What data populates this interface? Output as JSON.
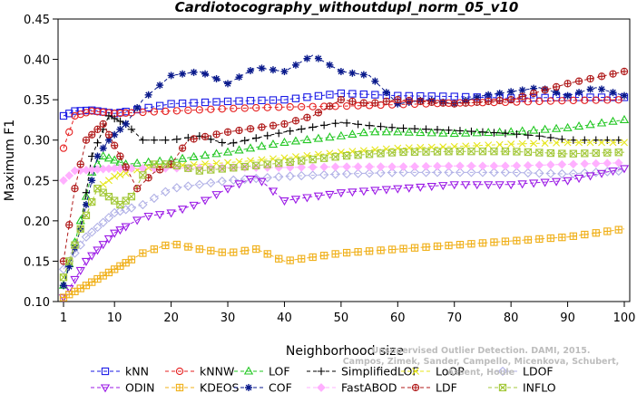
{
  "chart_data": {
    "type": "line",
    "title": "Cardiotocography_withoutdupl_norm_05_v10",
    "xlabel": "Neighborhood size",
    "ylabel": "Maximum F1",
    "xlim": [
      1,
      100
    ],
    "ylim": [
      0.1,
      0.45
    ],
    "xticks": [
      1,
      10,
      20,
      30,
      40,
      50,
      60,
      70,
      80,
      90,
      100
    ],
    "yticks": [
      "0.10",
      "0.15",
      "0.20",
      "0.25",
      "0.30",
      "0.35",
      "0.40",
      "0.45"
    ],
    "grid": false,
    "legend_position": "bottom",
    "series": [
      {
        "name": "kNN",
        "color": "#1a1ae6",
        "marker": "square",
        "knots": [
          [
            1,
            0.33
          ],
          [
            3,
            0.336
          ],
          [
            6,
            0.337
          ],
          [
            10,
            0.333
          ],
          [
            20,
            0.345
          ],
          [
            30,
            0.348
          ],
          [
            40,
            0.35
          ],
          [
            50,
            0.358
          ],
          [
            60,
            0.355
          ],
          [
            70,
            0.354
          ],
          [
            80,
            0.352
          ],
          [
            90,
            0.353
          ],
          [
            100,
            0.353
          ]
        ]
      },
      {
        "name": "kNNW",
        "color": "#e62020",
        "marker": "circle",
        "knots": [
          [
            1,
            0.29
          ],
          [
            3,
            0.33
          ],
          [
            6,
            0.336
          ],
          [
            10,
            0.333
          ],
          [
            20,
            0.336
          ],
          [
            30,
            0.339
          ],
          [
            40,
            0.341
          ],
          [
            50,
            0.342
          ],
          [
            60,
            0.344
          ],
          [
            70,
            0.346
          ],
          [
            80,
            0.347
          ],
          [
            90,
            0.349
          ],
          [
            100,
            0.35
          ]
        ]
      },
      {
        "name": "LOF",
        "color": "#22c722",
        "marker": "triangle-up",
        "knots": [
          [
            1,
            0.12
          ],
          [
            4,
            0.2
          ],
          [
            6,
            0.26
          ],
          [
            8,
            0.28
          ],
          [
            12,
            0.27
          ],
          [
            20,
            0.275
          ],
          [
            30,
            0.285
          ],
          [
            40,
            0.297
          ],
          [
            50,
            0.305
          ],
          [
            55,
            0.31
          ],
          [
            60,
            0.31
          ],
          [
            70,
            0.308
          ],
          [
            80,
            0.31
          ],
          [
            90,
            0.315
          ],
          [
            100,
            0.325
          ]
        ]
      },
      {
        "name": "SimplifiedLOF",
        "color": "#000000",
        "marker": "plus",
        "knots": [
          [
            1,
            0.12
          ],
          [
            4,
            0.19
          ],
          [
            6,
            0.28
          ],
          [
            9,
            0.33
          ],
          [
            12,
            0.32
          ],
          [
            15,
            0.3
          ],
          [
            20,
            0.3
          ],
          [
            25,
            0.305
          ],
          [
            30,
            0.295
          ],
          [
            40,
            0.31
          ],
          [
            50,
            0.322
          ],
          [
            55,
            0.318
          ],
          [
            60,
            0.315
          ],
          [
            70,
            0.312
          ],
          [
            80,
            0.308
          ],
          [
            85,
            0.305
          ],
          [
            90,
            0.3
          ],
          [
            100,
            0.3
          ]
        ]
      },
      {
        "name": "LoOP",
        "color": "#e6e61a",
        "marker": "cross",
        "knots": [
          [
            1,
            0.13
          ],
          [
            4,
            0.19
          ],
          [
            7,
            0.24
          ],
          [
            10,
            0.255
          ],
          [
            15,
            0.265
          ],
          [
            20,
            0.268
          ],
          [
            30,
            0.272
          ],
          [
            40,
            0.278
          ],
          [
            50,
            0.285
          ],
          [
            60,
            0.29
          ],
          [
            70,
            0.292
          ],
          [
            80,
            0.295
          ],
          [
            90,
            0.297
          ],
          [
            100,
            0.297
          ]
        ]
      },
      {
        "name": "LDOF",
        "color": "#b0b0e6",
        "marker": "diamond",
        "knots": [
          [
            1,
            0.14
          ],
          [
            5,
            0.18
          ],
          [
            10,
            0.21
          ],
          [
            15,
            0.22
          ],
          [
            20,
            0.24
          ],
          [
            25,
            0.245
          ],
          [
            30,
            0.25
          ],
          [
            40,
            0.255
          ],
          [
            50,
            0.258
          ],
          [
            60,
            0.26
          ],
          [
            70,
            0.26
          ],
          [
            80,
            0.26
          ],
          [
            90,
            0.258
          ],
          [
            100,
            0.262
          ]
        ]
      },
      {
        "name": "ODIN",
        "color": "#9b1ae6",
        "marker": "triangle-down",
        "knots": [
          [
            1,
            0.105
          ],
          [
            5,
            0.15
          ],
          [
            10,
            0.185
          ],
          [
            15,
            0.205
          ],
          [
            20,
            0.21
          ],
          [
            25,
            0.222
          ],
          [
            30,
            0.24
          ],
          [
            35,
            0.255
          ],
          [
            40,
            0.225
          ],
          [
            50,
            0.235
          ],
          [
            60,
            0.24
          ],
          [
            70,
            0.245
          ],
          [
            80,
            0.245
          ],
          [
            90,
            0.25
          ],
          [
            100,
            0.265
          ]
        ]
      },
      {
        "name": "KDEOS",
        "color": "#f0b01a",
        "marker": "boxplus",
        "knots": [
          [
            1,
            0.105
          ],
          [
            5,
            0.12
          ],
          [
            10,
            0.14
          ],
          [
            15,
            0.16
          ],
          [
            20,
            0.172
          ],
          [
            25,
            0.165
          ],
          [
            30,
            0.16
          ],
          [
            35,
            0.165
          ],
          [
            40,
            0.15
          ],
          [
            50,
            0.16
          ],
          [
            60,
            0.165
          ],
          [
            70,
            0.17
          ],
          [
            80,
            0.175
          ],
          [
            90,
            0.18
          ],
          [
            100,
            0.19
          ]
        ]
      },
      {
        "name": "COF",
        "color": "#0a1a8c",
        "marker": "asterisk",
        "knots": [
          [
            1,
            0.12
          ],
          [
            4,
            0.19
          ],
          [
            7,
            0.28
          ],
          [
            9,
            0.3
          ],
          [
            12,
            0.32
          ],
          [
            15,
            0.35
          ],
          [
            20,
            0.38
          ],
          [
            25,
            0.385
          ],
          [
            30,
            0.37
          ],
          [
            35,
            0.39
          ],
          [
            40,
            0.385
          ],
          [
            45,
            0.405
          ],
          [
            50,
            0.385
          ],
          [
            55,
            0.38
          ],
          [
            60,
            0.345
          ],
          [
            65,
            0.35
          ],
          [
            70,
            0.345
          ],
          [
            75,
            0.355
          ],
          [
            80,
            0.36
          ],
          [
            85,
            0.365
          ],
          [
            90,
            0.355
          ],
          [
            95,
            0.365
          ],
          [
            100,
            0.355
          ]
        ]
      },
      {
        "name": "FastABOD",
        "color": "#ffb0ff",
        "marker": "diamond-filled",
        "knots": [
          [
            1,
            0.25
          ],
          [
            3,
            0.262
          ],
          [
            10,
            0.265
          ],
          [
            20,
            0.265
          ],
          [
            30,
            0.266
          ],
          [
            40,
            0.266
          ],
          [
            50,
            0.267
          ],
          [
            60,
            0.267
          ],
          [
            70,
            0.268
          ],
          [
            80,
            0.268
          ],
          [
            90,
            0.27
          ],
          [
            100,
            0.272
          ]
        ]
      },
      {
        "name": "LDF",
        "color": "#b01a1a",
        "marker": "circleplus",
        "knots": [
          [
            1,
            0.15
          ],
          [
            3,
            0.24
          ],
          [
            5,
            0.3
          ],
          [
            8,
            0.32
          ],
          [
            11,
            0.28
          ],
          [
            14,
            0.24
          ],
          [
            17,
            0.26
          ],
          [
            20,
            0.27
          ],
          [
            23,
            0.3
          ],
          [
            30,
            0.31
          ],
          [
            35,
            0.315
          ],
          [
            40,
            0.32
          ],
          [
            45,
            0.33
          ],
          [
            50,
            0.35
          ],
          [
            55,
            0.345
          ],
          [
            60,
            0.35
          ],
          [
            70,
            0.345
          ],
          [
            80,
            0.35
          ],
          [
            90,
            0.37
          ],
          [
            100,
            0.385
          ]
        ]
      },
      {
        "name": "INFLO",
        "color": "#a3c83a",
        "marker": "boxtimes",
        "knots": [
          [
            1,
            0.13
          ],
          [
            4,
            0.19
          ],
          [
            7,
            0.24
          ],
          [
            9,
            0.23
          ],
          [
            11,
            0.22
          ],
          [
            13,
            0.23
          ],
          [
            16,
            0.27
          ],
          [
            20,
            0.27
          ],
          [
            25,
            0.262
          ],
          [
            30,
            0.265
          ],
          [
            40,
            0.272
          ],
          [
            50,
            0.28
          ],
          [
            60,
            0.285
          ],
          [
            70,
            0.286
          ],
          [
            80,
            0.286
          ],
          [
            90,
            0.283
          ],
          [
            100,
            0.285
          ]
        ]
      }
    ]
  },
  "legend_order": [
    [
      "kNN",
      "kNNW",
      "LOF",
      "SimplifiedLOF",
      "LoOP",
      "LDOF"
    ],
    [
      "ODIN",
      "KDEOS",
      "COF",
      "FastABOD",
      "LDF",
      "INFLO"
    ]
  ],
  "watermark": {
    "line1": "Campos, Zimek, Sander, Campello, Micenkova, Schubert, Assent, Houle",
    "line2": "Unsupervised Outlier Detection. DAMI, 2015."
  }
}
